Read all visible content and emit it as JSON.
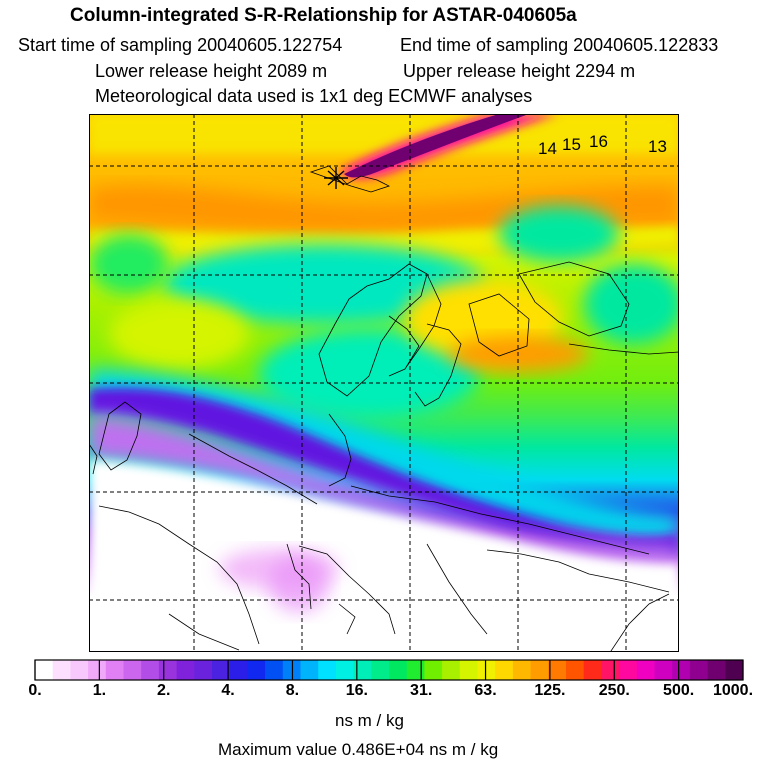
{
  "header": {
    "title": "Column-integrated S-R-Relationship for ASTAR-040605a",
    "start_time": "Start time of sampling 20040605.122754",
    "end_time": "End time of sampling 20040605.122833",
    "lower_release": "Lower release height 2089 m",
    "upper_release": "Upper release height 2294 m",
    "met_data": "Meteorological data used is 1x1 deg ECMWF analyses"
  },
  "map": {
    "labels": [
      {
        "id": "label-14",
        "text": "14"
      },
      {
        "id": "label-15",
        "text": "15"
      },
      {
        "id": "label-16",
        "text": "16"
      },
      {
        "id": "label-13",
        "text": "13"
      }
    ]
  },
  "colorbar": {
    "colors": [
      "#ffffff",
      "#fde0fe",
      "#f8c8fc",
      "#f0a8f8",
      "#e080f4",
      "#cc66ee",
      "#b24de8",
      "#9933dd",
      "#8022dc",
      "#6a22dc",
      "#4a22e0",
      "#2a1ee8",
      "#1028f0",
      "#0050f4",
      "#0080f8",
      "#00b4fb",
      "#00e0ff",
      "#00f0e4",
      "#00eeb8",
      "#00ec8a",
      "#00e860",
      "#20ec30",
      "#70f000",
      "#a8f000",
      "#d4f400",
      "#f0f000",
      "#ffd800",
      "#ffb800",
      "#ff9c00",
      "#ff7a00",
      "#ff5400",
      "#ff2a1a",
      "#ff1466",
      "#ff08a0",
      "#f000c0",
      "#d000c0",
      "#b000b0",
      "#900090",
      "#700070",
      "#500050"
    ],
    "ticks": [
      "0.",
      "1.",
      "2.",
      "4.",
      "8.",
      "16.",
      "31.",
      "63.",
      "125.",
      "250.",
      "500.",
      "1000."
    ],
    "units": "ns m / kg",
    "max_value": "Maximum value  0.486E+04 ns m / kg"
  }
}
